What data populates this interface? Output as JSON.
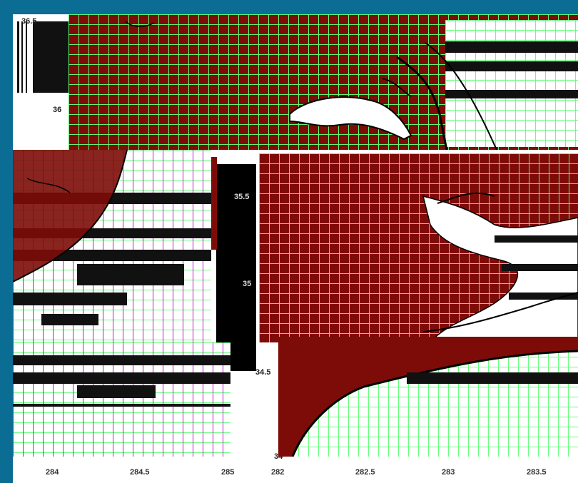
{
  "map_labels": {
    "top_left_partial": "36.5",
    "lat_36": "36",
    "lat_35_5": "35.5",
    "lat_35": "35",
    "lat_34_5": "34.5",
    "lat_34": "34"
  },
  "x_ticks_left": [
    "284",
    "284.5",
    "285"
  ],
  "x_ticks_right": [
    "282",
    "282.5",
    "283",
    "283.5"
  ],
  "colors": {
    "land": "#7d0c08",
    "grid": "#62ff78",
    "water": "#ffffff",
    "frame": "#0b6d93"
  }
}
